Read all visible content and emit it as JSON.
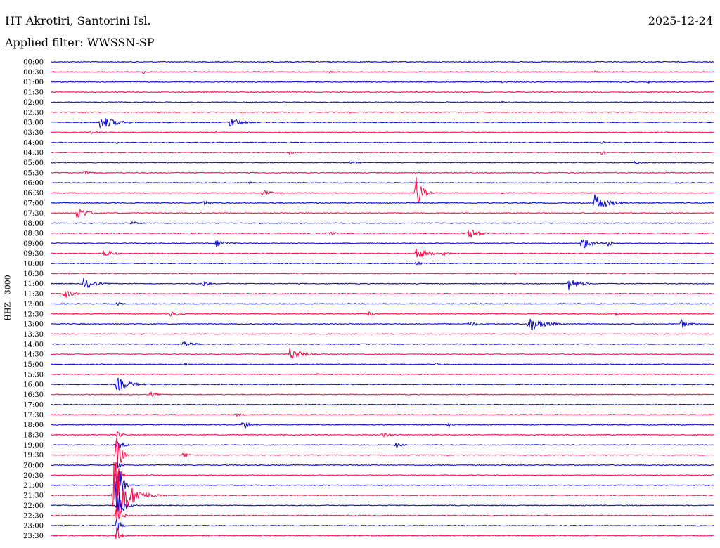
{
  "header": {
    "station": "HT Akrotiri, Santorini Isl.",
    "date": "2025-12-24",
    "filter": "Applied filter: WWSSN-SP",
    "channel": "HHZ - 3000"
  },
  "chart_data": {
    "type": "line",
    "title": "HT Akrotiri, Santorini Isl.",
    "subtitle": "Applied filter: WWSSN-SP",
    "ylabel": "HHZ - 3000",
    "colors": [
      "#0000cc",
      "#ff0044"
    ],
    "rows": [
      {
        "label": "00:00",
        "events": [
          [
            0.32,
            3,
            0.4
          ]
        ]
      },
      {
        "label": "00:30",
        "events": [
          [
            0.14,
            3,
            0.8
          ],
          [
            0.42,
            2,
            0.6
          ],
          [
            0.82,
            2,
            0.7
          ]
        ]
      },
      {
        "label": "01:00",
        "events": [
          [
            0.4,
            2,
            0.4
          ],
          [
            0.68,
            2,
            0.4
          ],
          [
            0.9,
            2,
            0.4
          ]
        ]
      },
      {
        "label": "01:30",
        "events": [
          [
            0.3,
            2,
            0.4
          ],
          [
            0.83,
            2,
            0.5
          ]
        ]
      },
      {
        "label": "02:00",
        "events": [
          [
            0.68,
            1.5,
            0.4
          ]
        ]
      },
      {
        "label": "02:30",
        "events": [
          [
            0.45,
            2,
            0.4
          ]
        ]
      },
      {
        "label": "03:00",
        "events": [
          [
            0.075,
            11,
            2.0
          ],
          [
            0.27,
            8,
            1.5
          ]
        ]
      },
      {
        "label": "03:30",
        "events": [
          [
            0.06,
            3,
            1.0
          ],
          [
            0.25,
            2,
            0.5
          ]
        ]
      },
      {
        "label": "04:00",
        "events": [
          [
            0.1,
            2,
            0.6
          ],
          [
            0.83,
            2,
            0.8
          ]
        ]
      },
      {
        "label": "04:30",
        "events": [
          [
            0.36,
            3,
            0.6
          ],
          [
            0.83,
            3,
            0.6
          ]
        ]
      },
      {
        "label": "05:00",
        "events": [
          [
            0.45,
            2,
            2.0
          ],
          [
            0.88,
            3,
            1.0
          ]
        ]
      },
      {
        "label": "05:30",
        "events": [
          [
            0.05,
            3,
            1.5
          ]
        ]
      },
      {
        "label": "06:00",
        "events": [
          [
            0.3,
            2,
            0.5
          ]
        ]
      },
      {
        "label": "06:30",
        "events": [
          [
            0.55,
            30,
            0.8
          ],
          [
            0.32,
            5,
            1.2
          ],
          [
            0.68,
            3,
            0.5
          ]
        ]
      },
      {
        "label": "07:00",
        "events": [
          [
            0.82,
            13,
            1.8
          ],
          [
            0.23,
            4,
            1.2
          ]
        ]
      },
      {
        "label": "07:30",
        "events": [
          [
            0.04,
            10,
            1.4
          ]
        ]
      },
      {
        "label": "08:00",
        "events": [
          [
            0.12,
            3,
            1.5
          ]
        ]
      },
      {
        "label": "08:30",
        "events": [
          [
            0.63,
            8,
            1.5
          ],
          [
            0.42,
            3,
            1.0
          ]
        ]
      },
      {
        "label": "09:00",
        "events": [
          [
            0.8,
            10,
            1.5
          ],
          [
            0.25,
            6,
            1.5
          ],
          [
            0.84,
            5,
            0.8
          ]
        ]
      },
      {
        "label": "09:30",
        "events": [
          [
            0.08,
            6,
            1.5
          ],
          [
            0.55,
            9,
            1.8
          ],
          [
            0.59,
            5,
            0.8
          ]
        ]
      },
      {
        "label": "10:00",
        "events": [
          [
            0.55,
            3,
            1.0
          ]
        ]
      },
      {
        "label": "10:30",
        "events": [
          [
            0.7,
            2,
            0.8
          ]
        ]
      },
      {
        "label": "11:00",
        "events": [
          [
            0.05,
            9,
            1.5
          ],
          [
            0.78,
            10,
            1.5
          ],
          [
            0.23,
            5,
            0.8
          ]
        ]
      },
      {
        "label": "11:30",
        "events": [
          [
            0.02,
            8,
            1.2
          ]
        ]
      },
      {
        "label": "12:00",
        "events": [
          [
            0.1,
            3,
            0.8
          ]
        ]
      },
      {
        "label": "12:30",
        "events": [
          [
            0.18,
            4,
            1.5
          ],
          [
            0.48,
            4,
            0.8
          ],
          [
            0.85,
            3,
            0.8
          ]
        ]
      },
      {
        "label": "13:00",
        "events": [
          [
            0.72,
            12,
            2.0
          ],
          [
            0.95,
            7,
            1.0
          ],
          [
            0.63,
            4,
            1.5
          ]
        ]
      },
      {
        "label": "13:30",
        "events": [
          [
            0.3,
            2,
            0.5
          ]
        ]
      },
      {
        "label": "14:00",
        "events": [
          [
            0.2,
            5,
            1.5
          ]
        ]
      },
      {
        "label": "14:30",
        "events": [
          [
            0.36,
            9,
            1.8
          ]
        ]
      },
      {
        "label": "15:00",
        "events": [
          [
            0.2,
            3,
            1.0
          ],
          [
            0.58,
            3,
            1.0
          ]
        ]
      },
      {
        "label": "15:30",
        "events": [
          [
            0.4,
            2,
            0.5
          ]
        ]
      },
      {
        "label": "16:00",
        "events": [
          [
            0.1,
            10,
            2.0
          ]
        ]
      },
      {
        "label": "16:30",
        "events": [
          [
            0.15,
            4,
            1.0
          ]
        ]
      },
      {
        "label": "17:00",
        "events": [
          [
            0.25,
            2,
            0.5
          ]
        ]
      },
      {
        "label": "17:30",
        "events": [
          [
            0.28,
            3,
            1.0
          ]
        ]
      },
      {
        "label": "18:00",
        "events": [
          [
            0.29,
            8,
            0.8
          ],
          [
            0.6,
            3,
            1.0
          ]
        ]
      },
      {
        "label": "18:30",
        "events": [
          [
            0.1,
            5,
            0.8
          ],
          [
            0.5,
            4,
            1.5
          ]
        ]
      },
      {
        "label": "19:00",
        "events": [
          [
            0.1,
            5,
            1.5
          ],
          [
            0.52,
            4,
            1.0
          ]
        ]
      },
      {
        "label": "19:30",
        "events": [
          [
            0.1,
            40,
            0.5
          ],
          [
            0.2,
            4,
            1.0
          ]
        ]
      },
      {
        "label": "20:00",
        "events": [
          [
            0.1,
            6,
            0.6
          ]
        ]
      },
      {
        "label": "20:30",
        "events": [
          [
            0.1,
            20,
            0.5
          ]
        ]
      },
      {
        "label": "21:00",
        "events": [
          [
            0.1,
            45,
            0.6
          ]
        ]
      },
      {
        "label": "21:30",
        "events": [
          [
            0.095,
            60,
            1.8
          ]
        ]
      },
      {
        "label": "22:00",
        "events": [
          [
            0.1,
            30,
            0.8
          ]
        ]
      },
      {
        "label": "22:30",
        "events": [
          [
            0.1,
            18,
            0.6
          ]
        ]
      },
      {
        "label": "23:00",
        "events": [
          [
            0.1,
            12,
            0.5
          ]
        ]
      },
      {
        "label": "23:30",
        "events": [
          [
            0.1,
            14,
            0.5
          ]
        ]
      }
    ]
  }
}
